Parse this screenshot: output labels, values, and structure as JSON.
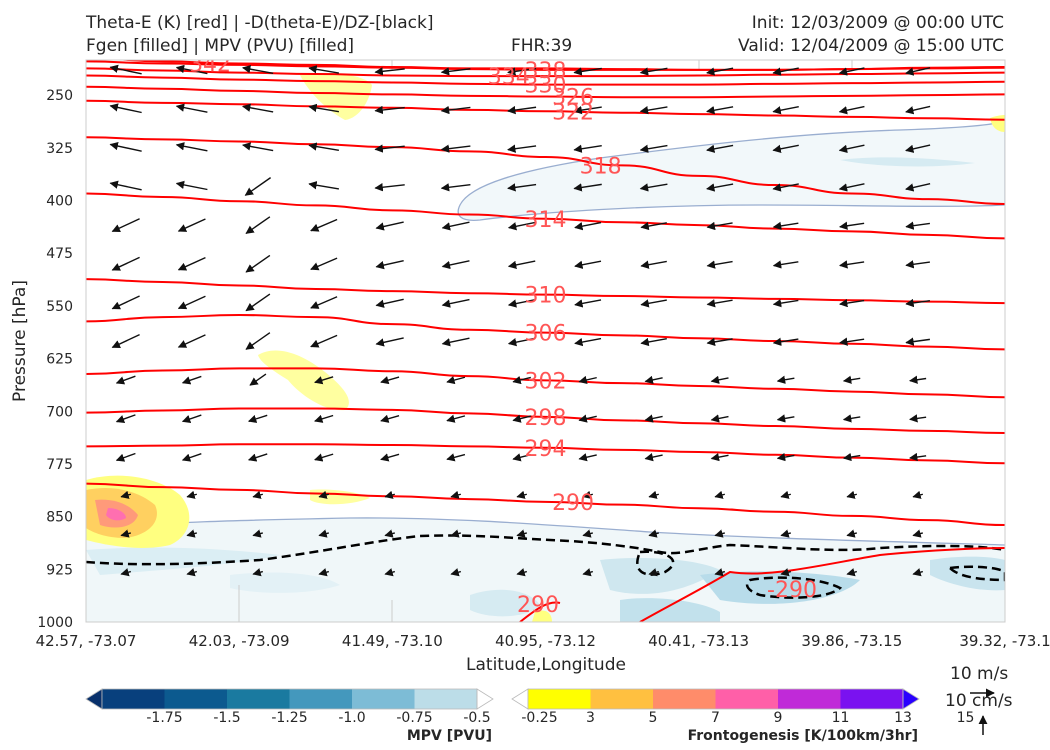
{
  "header": {
    "title_line1": "Theta-E (K) [red] | -D(theta-E)/DZ-[black]",
    "title_line2": "Fgen [filled] | MPV (PVU) [filled]",
    "fhr": "FHR:39",
    "init": "Init: 12/03/2009 @ 00:00 UTC",
    "valid": "Valid: 12/04/2009 @ 15:00 UTC"
  },
  "chart_data": {
    "type": "contour",
    "xlabel": "Latitude,Longitude",
    "ylabel": "Pressure [hPa]",
    "x_ticks": [
      "42.57, -73.07",
      "42.03, -73.09",
      "41.49, -73.10",
      "40.95, -73.12",
      "40.41, -73.13",
      "39.86, -73.15",
      "39.32, -73.1"
    ],
    "y_ticks": [
      250,
      325,
      400,
      475,
      550,
      625,
      700,
      775,
      850,
      925,
      1000
    ],
    "ylim": [
      1000,
      200
    ],
    "theta_e": {
      "color": "#ff0000",
      "levels": [
        {
          "v": 342,
          "y": [
            197,
            202,
            205,
            207,
            210,
            212,
            212,
            213,
            214,
            214,
            213,
            212,
            211
          ],
          "lx": 0.135
        },
        {
          "v": 338,
          "y": [
            202,
            205,
            207,
            209,
            211,
            213,
            214,
            214,
            214,
            214,
            213,
            211,
            210
          ],
          "lx": 0.5
        },
        {
          "v": 334,
          "y": [
            212,
            215,
            218,
            220,
            222,
            223,
            223,
            223,
            222,
            221,
            220,
            219,
            218
          ],
          "lx": 0.46
        },
        {
          "v": 330,
          "y": [
            222,
            225,
            228,
            230,
            232,
            234,
            235,
            235,
            235,
            234,
            233,
            232,
            231
          ],
          "lx": 0.5
        },
        {
          "v": 326,
          "y": [
            238,
            241,
            244,
            247,
            249,
            251,
            252,
            253,
            253,
            252,
            251,
            250,
            249
          ],
          "lx": 0.53
        },
        {
          "v": 322,
          "y": [
            258,
            261,
            263,
            266,
            268,
            271,
            273,
            275,
            277,
            279,
            281,
            283,
            285
          ],
          "lx": 0.53
        },
        {
          "v": 318,
          "y": [
            310,
            313,
            316,
            320,
            324,
            330,
            338,
            350,
            365,
            378,
            390,
            398,
            405
          ],
          "lx": 0.56
        },
        {
          "v": 314,
          "y": [
            390,
            395,
            401,
            407,
            414,
            420,
            426,
            431,
            435,
            440,
            444,
            449,
            454
          ],
          "lx": 0.5
        },
        {
          "v": 310,
          "y": [
            512,
            516,
            521,
            526,
            529,
            532,
            534,
            536,
            538,
            540,
            542,
            544,
            546
          ],
          "lx": 0.5
        },
        {
          "v": 306,
          "y": [
            572,
            566,
            563,
            566,
            576,
            584,
            588,
            592,
            596,
            600,
            604,
            608,
            612
          ],
          "lx": 0.5
        },
        {
          "v": 302,
          "y": [
            647,
            642,
            639,
            639,
            643,
            650,
            656,
            660,
            664,
            668,
            672,
            676,
            680
          ],
          "lx": 0.5
        },
        {
          "v": 298,
          "y": [
            702,
            699,
            696,
            696,
            698,
            703,
            708,
            713,
            717,
            721,
            725,
            728,
            731
          ],
          "lx": 0.5
        },
        {
          "v": 294,
          "y": [
            750,
            749,
            747,
            747,
            748,
            750,
            752,
            755,
            758,
            762,
            766,
            770,
            774
          ],
          "lx": 0.5
        },
        {
          "v": 290,
          "y": [
            803,
            808,
            812,
            817,
            821,
            825,
            829,
            833,
            838,
            843,
            849,
            855,
            862
          ],
          "lx": 0.53
        }
      ],
      "low_label": "290"
    },
    "dthetae_dz": {
      "color": "#000000",
      "style": "dashed",
      "label": "-290"
    },
    "wind_key": {
      "horizontal": "10 m/s",
      "vertical": "10 cm/s"
    },
    "mpv_colorbar": {
      "label": "MPV [PVU]",
      "ticks": [
        "-1.75",
        "-1.5",
        "-1.25",
        "-1.0",
        "-0.75",
        "-0.5",
        "-0.25"
      ],
      "colors": [
        "#08306b",
        "#08407d",
        "#0c5a8f",
        "#1a7aa0",
        "#4498bd",
        "#7dbcd6",
        "#bcdde8",
        "#ffffff"
      ]
    },
    "fgen_colorbar": {
      "label": "Frontogenesis [K/100km/3hr]",
      "ticks": [
        "3",
        "5",
        "7",
        "9",
        "11",
        "13",
        "15"
      ],
      "colors": [
        "#ffffff",
        "#ffff00",
        "#ffc040",
        "#ff8c6a",
        "#ff5fa8",
        "#c02ad8",
        "#7a12f0",
        "#2a00ff"
      ]
    }
  }
}
